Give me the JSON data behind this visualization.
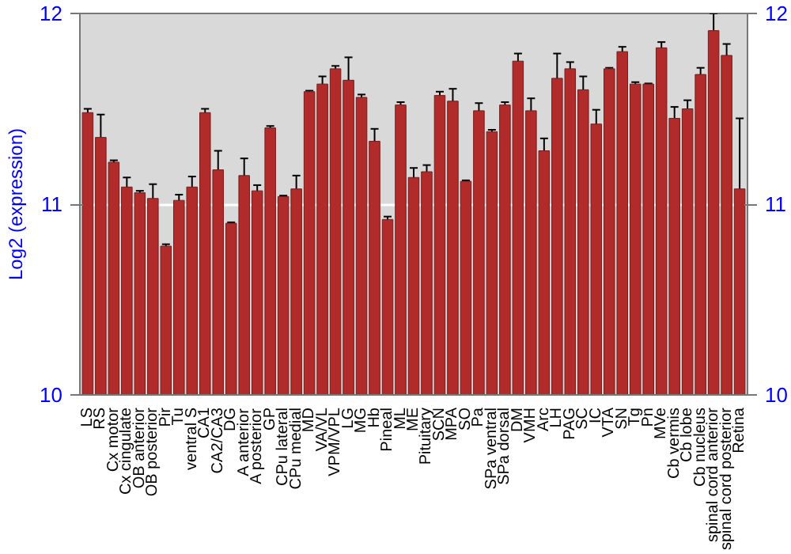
{
  "chart_data": {
    "type": "bar",
    "ylabel": "Log2 (expression)",
    "categories": [
      "LS",
      "RS",
      "Cx motor",
      "Cx cingulate",
      "OB anterior",
      "OB posterior",
      "Pir",
      "Tu",
      "ventral S",
      "CA1",
      "CA2/CA3",
      "DG",
      "A anterior",
      "A posterior",
      "GP",
      "CPu lateral",
      "CPu medial",
      "MD",
      "VA/VL",
      "VPM/VPL",
      "LG",
      "MG",
      "Hb",
      "Pineal",
      "ML",
      "ME",
      "Pituitary",
      "SCN",
      "MPA",
      "SO",
      "Pa",
      "SPa ventral",
      "SPa dorsal",
      "DM",
      "VMH",
      "Arc",
      "LH",
      "PAG",
      "SC",
      "IC",
      "VTA",
      "SN",
      "Tg",
      "Pn",
      "MVe",
      "Cb vermis",
      "Cb lobe",
      "Cb nucleus",
      "spinal cord anterior",
      "spinal cord posterior",
      "Retina"
    ],
    "values": [
      11.48,
      11.35,
      11.22,
      11.09,
      11.06,
      11.03,
      10.78,
      11.02,
      11.09,
      11.48,
      11.18,
      10.9,
      11.15,
      11.07,
      11.4,
      11.04,
      11.08,
      11.59,
      11.63,
      11.71,
      11.65,
      11.56,
      11.33,
      10.92,
      11.52,
      11.14,
      11.17,
      11.57,
      11.54,
      11.12,
      11.49,
      11.38,
      11.52,
      11.75,
      11.49,
      11.28,
      11.66,
      11.71,
      11.6,
      11.42,
      11.71,
      11.8,
      11.63,
      11.63,
      11.82,
      11.45,
      11.5,
      11.68,
      11.91,
      11.78,
      11.08
    ],
    "errors": [
      0.02,
      0.12,
      0.01,
      0.05,
      0.01,
      0.075,
      0.01,
      0.03,
      0.055,
      0.02,
      0.1,
      0.005,
      0.09,
      0.03,
      0.01,
      0.005,
      0.07,
      0.005,
      0.04,
      0.015,
      0.12,
      0.015,
      0.065,
      0.015,
      0.015,
      0.05,
      0.035,
      0.02,
      0.065,
      0.005,
      0.04,
      0.01,
      0.015,
      0.04,
      0.065,
      0.065,
      0.13,
      0.035,
      0.07,
      0.075,
      0.005,
      0.025,
      0.01,
      0.003,
      0.03,
      0.06,
      0.045,
      0.035,
      0.09,
      0.06,
      0.37
    ],
    "color": "#b22b2b",
    "ylim": [
      10,
      12
    ],
    "yticks": [
      10,
      11,
      12
    ],
    "y2lim": [
      10,
      12
    ],
    "y2ticks": [
      10,
      11,
      12
    ],
    "grid": "y"
  }
}
